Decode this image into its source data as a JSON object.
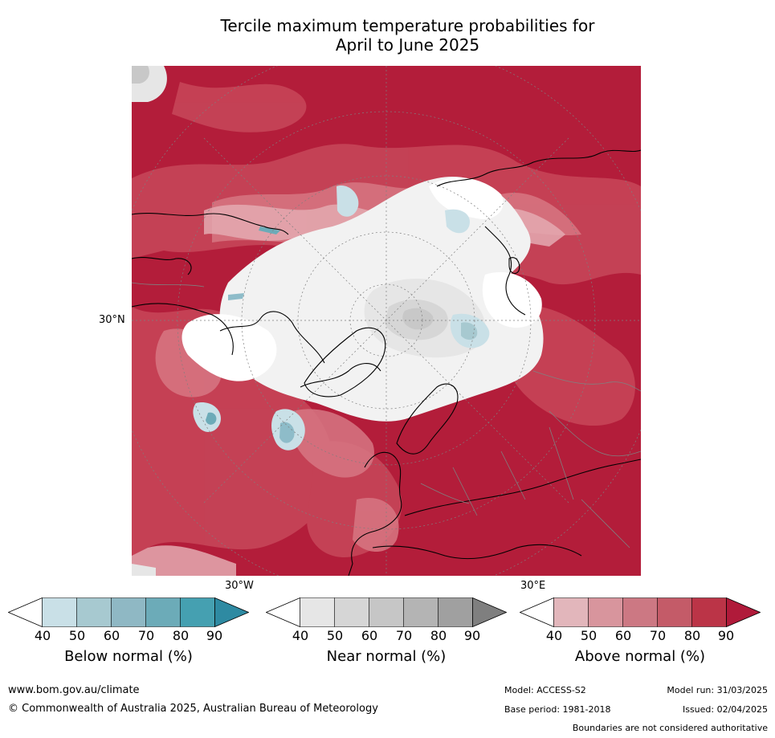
{
  "title": {
    "line1": "Tercile maximum temperature probabilities for",
    "line2": "April to June 2025"
  },
  "map": {
    "labels": {
      "lat_30n": "30°N",
      "lon_30w": "30°W",
      "lon_30e": "30°E"
    },
    "colors": {
      "ocean_deep_red": "#b31d3a",
      "mid_red": "#c64558",
      "light_red": "#d77783",
      "pink": "#e4aab1",
      "near_normal_light": "#e6e6e6",
      "near_normal_mid": "#c8c8c8",
      "below_light": "#c9e0e7",
      "below_mid": "#8ebcc9",
      "coastline": "#000000",
      "boundary": "#808080"
    }
  },
  "legends": {
    "below": {
      "label": "Below normal (%)",
      "ticks": [
        "40",
        "50",
        "60",
        "70",
        "80",
        "90"
      ],
      "colors": [
        "#ffffff",
        "#c9e0e7",
        "#a7c9d0",
        "#8fb8c4",
        "#6cabb8",
        "#45a0b1",
        "#2e8aa2"
      ]
    },
    "near": {
      "label": "Near normal (%)",
      "ticks": [
        "40",
        "50",
        "60",
        "70",
        "80",
        "90"
      ],
      "colors": [
        "#ffffff",
        "#e6e6e6",
        "#d6d6d6",
        "#c6c6c6",
        "#b4b4b4",
        "#a0a0a0",
        "#7f7f7f"
      ]
    },
    "above": {
      "label": "Above normal (%)",
      "ticks": [
        "40",
        "50",
        "60",
        "70",
        "80",
        "90"
      ],
      "colors": [
        "#ffffff",
        "#e2b6bb",
        "#d8959d",
        "#cc7883",
        "#c45b68",
        "#bb3447",
        "#b01a3a"
      ]
    }
  },
  "footer": {
    "website": "www.bom.gov.au/climate",
    "copyright": "© Commonwealth of Australia 2025, Australian Bureau of Meteorology",
    "model": "Model: ACCESS-S2",
    "model_run": "Model run: 31/03/2025",
    "base_period": "Base period: 1981-2018",
    "issued": "Issued: 02/04/2025",
    "disclaimer": "Boundaries are not considered authoritative"
  }
}
